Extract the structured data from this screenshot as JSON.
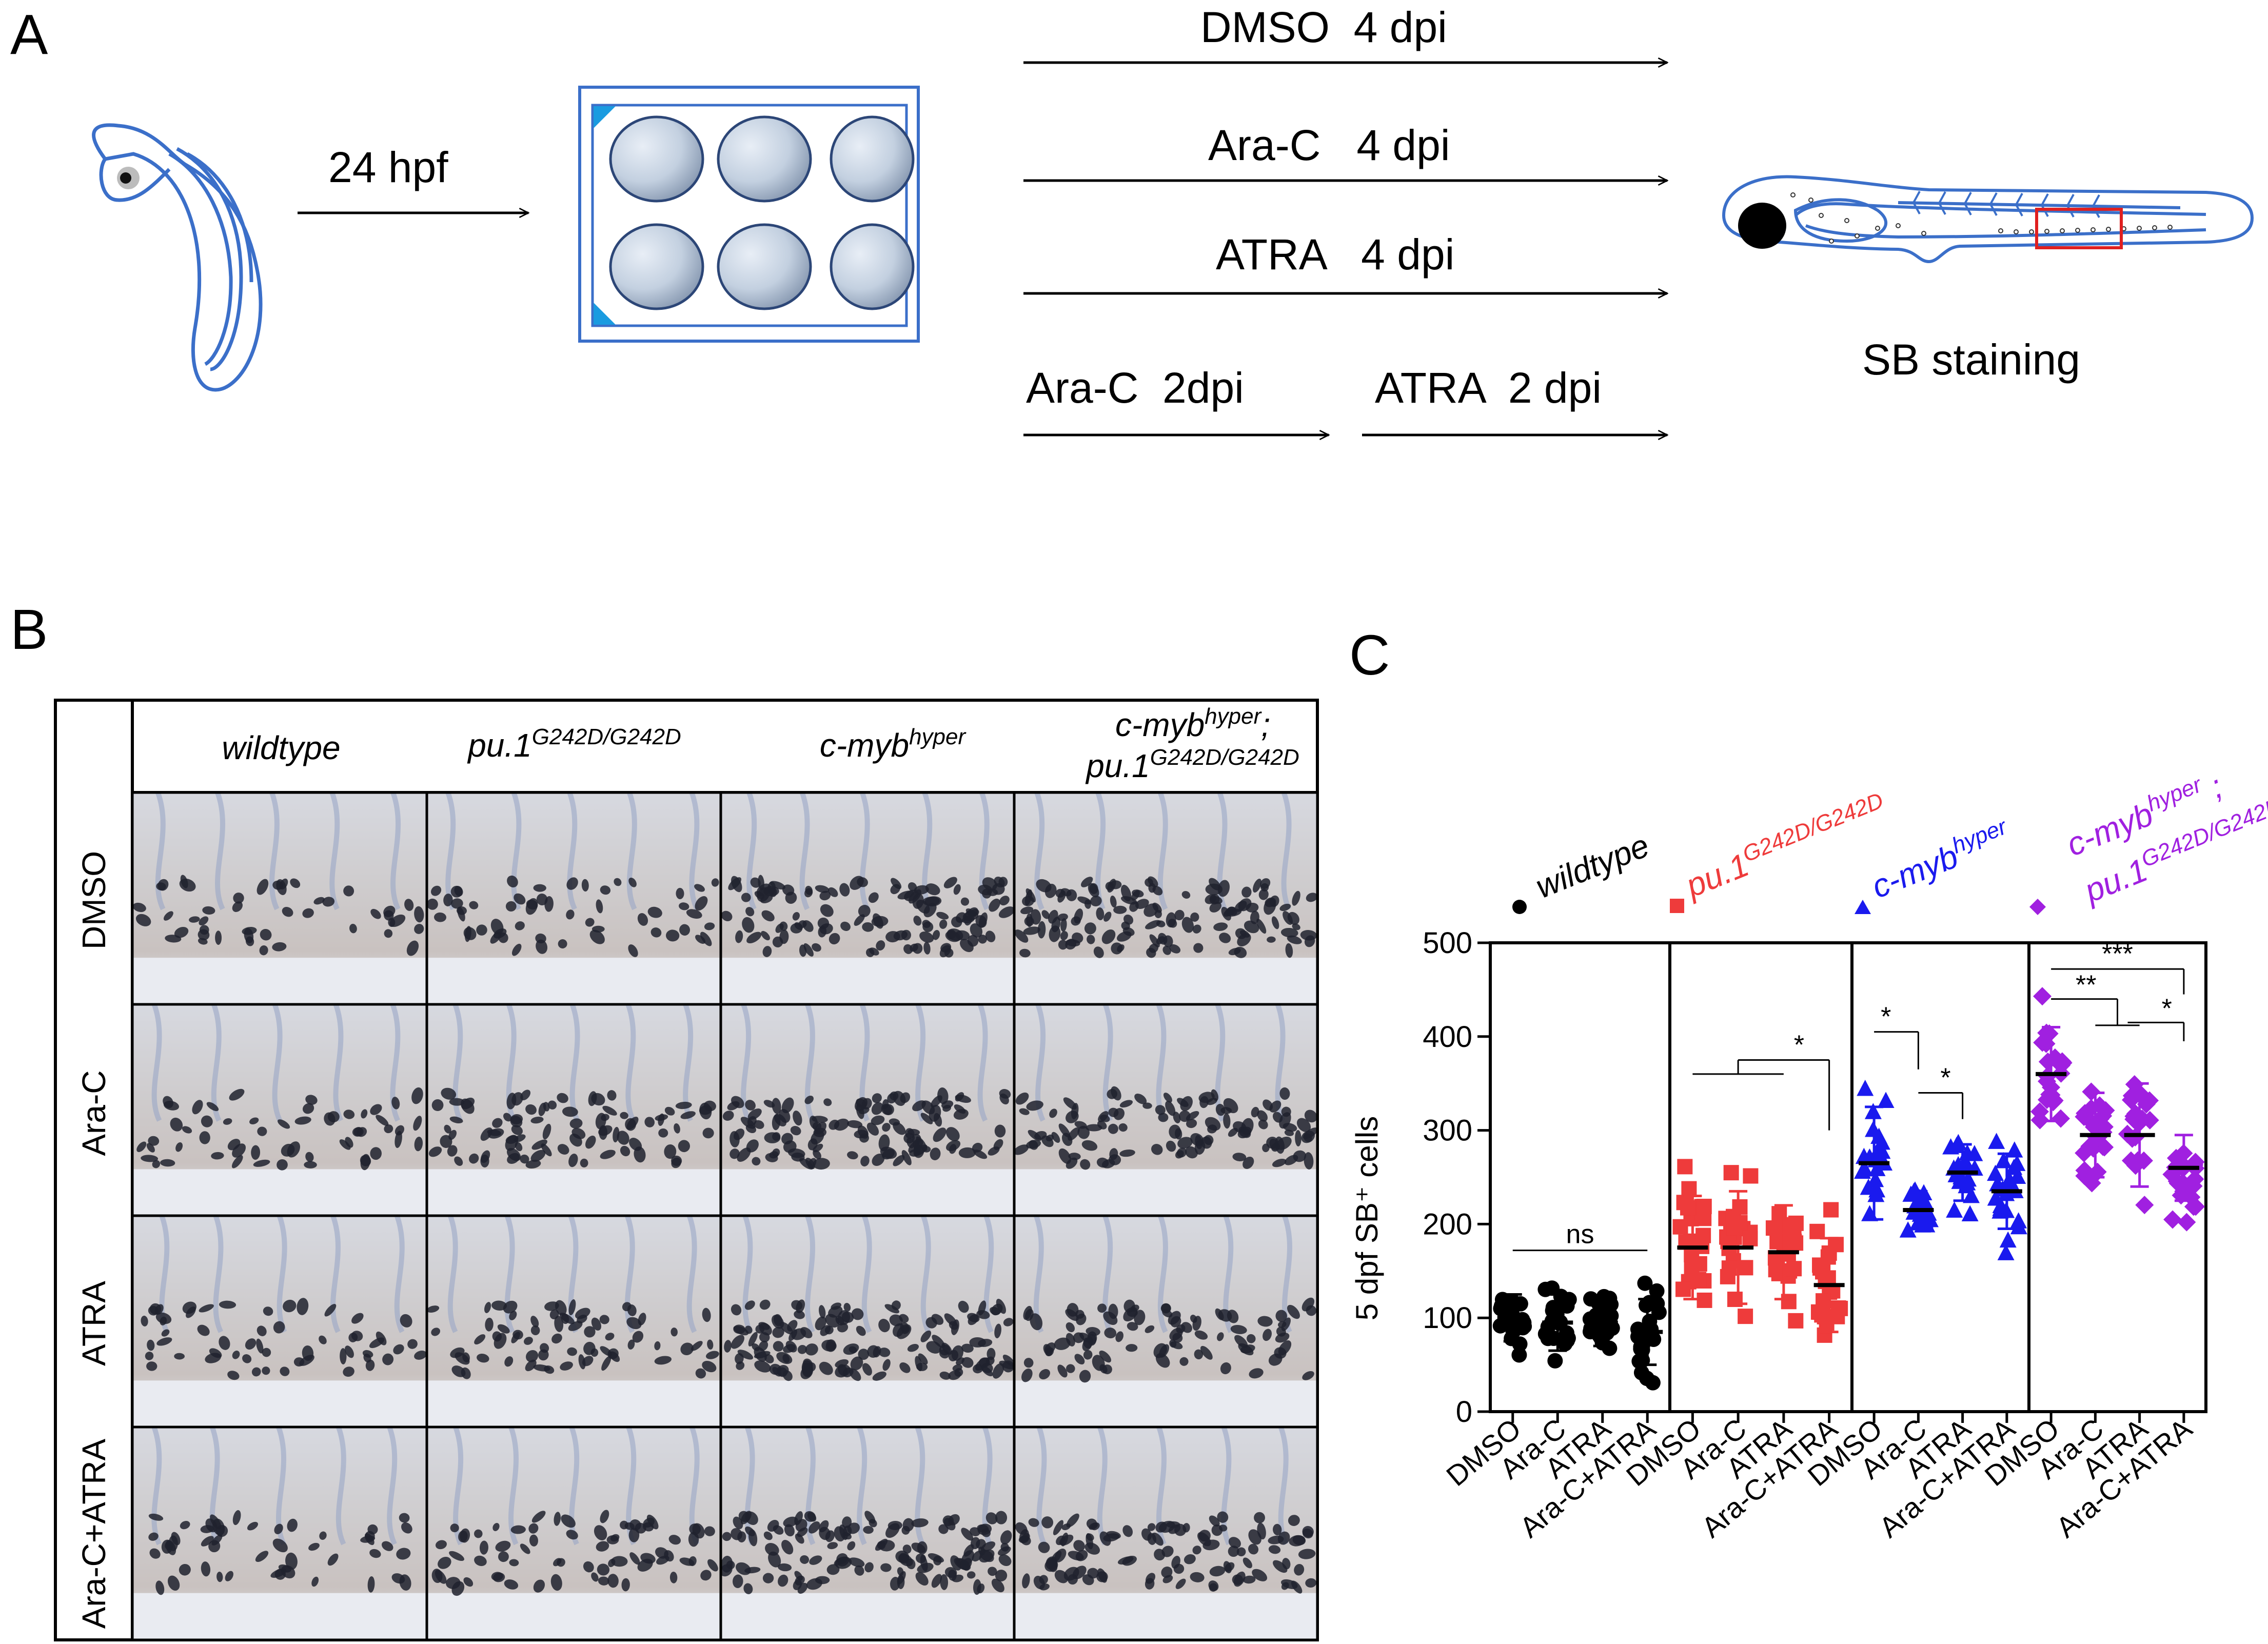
{
  "colors": {
    "embryo_outline": "#3b6fc9",
    "plate_outline": "#3b6fc9",
    "well_fill": "#c9d6e6",
    "highlight_box": "#e02020",
    "wildtype": "#000000",
    "pu1": "#ee3b3b",
    "cmyb": "#1a1aee",
    "double": "#a020e0"
  },
  "panel_a": {
    "letter": "A",
    "start_label": "24 hpf",
    "treatments": [
      "DMSO  4 dpi",
      "Ara-C   4 dpi",
      "ATRA   4 dpi"
    ],
    "sequential": {
      "first": "Ara-C  2dpi",
      "second": "ATRA  2 dpi"
    },
    "end_label": "SB staining"
  },
  "panel_b": {
    "letter": "B",
    "columns": [
      {
        "text": "wildtype"
      },
      {
        "text": "pu.1",
        "sup": "G242D/G242D"
      },
      {
        "text": "c-myb",
        "sup": "hyper"
      },
      {
        "line1": "c-myb",
        "line1_sup": "hyper",
        "line1_tail": ";",
        "line2": "pu.1",
        "line2_sup": "G242D/G242D"
      }
    ],
    "rows": [
      "DMSO",
      "Ara-C",
      "ATRA",
      "Ara-C+ATRA"
    ]
  },
  "panel_c": {
    "letter": "C",
    "legend": [
      {
        "marker": "circle",
        "text": "wildtype"
      },
      {
        "marker": "square",
        "text": "pu.1",
        "sup": "G242D/G242D"
      },
      {
        "marker": "triangle",
        "text": "c-myb",
        "sup": "hyper"
      },
      {
        "marker": "diamond",
        "line1": "c-myb",
        "line1_sup": "hyper",
        "line1_tail": " ;",
        "line2": "pu.1",
        "line2_sup": "G242D/G242D"
      }
    ],
    "ylabel": "5 dpf SB⁺ cells",
    "yticks": [
      "0",
      "100",
      "200",
      "300",
      "400",
      "500"
    ],
    "xtick_labels": [
      "DMSO",
      "Ara-C",
      "ATRA",
      "Ara-C+ATRA"
    ],
    "significance": {
      "wildtype": [
        "ns"
      ],
      "pu1": [
        "*"
      ],
      "cmyb": [
        "*",
        "*"
      ],
      "double": [
        "***",
        "**",
        "*"
      ]
    }
  },
  "chart_data": {
    "type": "scatter",
    "ylabel": "5 dpf SB⁺ cells",
    "ylim": [
      0,
      500
    ],
    "grid": false,
    "categories": [
      "DMSO",
      "Ara-C",
      "ATRA",
      "Ara-C+ATRA"
    ],
    "series": [
      {
        "name": "wildtype",
        "marker": "circle",
        "means": [
          100,
          95,
          95,
          85
        ],
        "sd": [
          25,
          30,
          25,
          35
        ]
      },
      {
        "name": "pu.1 G242D/G242D",
        "marker": "square",
        "means": [
          175,
          175,
          170,
          135
        ],
        "sd": [
          55,
          60,
          50,
          50
        ]
      },
      {
        "name": "c-myb hyper",
        "marker": "triangle",
        "means": [
          265,
          215,
          255,
          235
        ],
        "sd": [
          60,
          20,
          30,
          40
        ]
      },
      {
        "name": "c-myb hyper ; pu.1 G242D/G242D",
        "marker": "diamond",
        "means": [
          360,
          295,
          295,
          260
        ],
        "sd": [
          50,
          45,
          55,
          35
        ]
      }
    ]
  }
}
